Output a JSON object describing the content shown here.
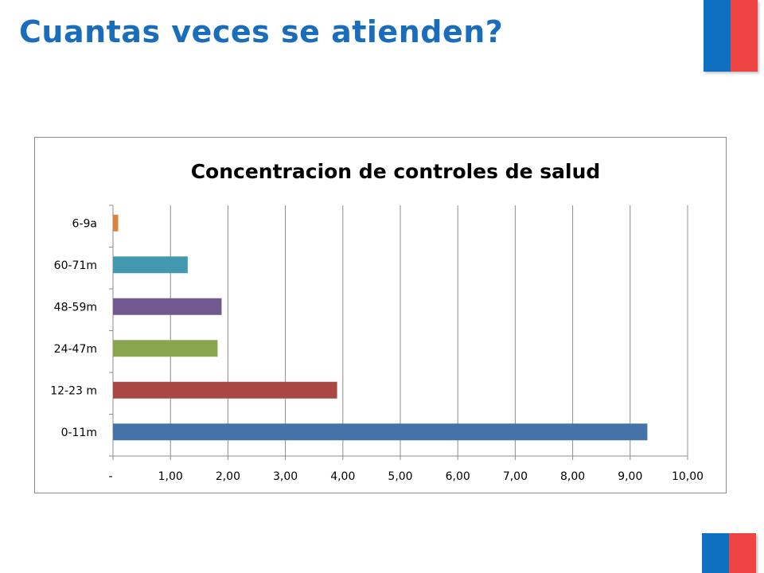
{
  "slide": {
    "title": "Cuantas veces se atienden?"
  },
  "colors": {
    "title": "#1a6dbb",
    "flag_blue": "#0f6fc1",
    "flag_red": "#ef4444",
    "grid": "#8c8c8c"
  },
  "chart_data": {
    "type": "bar",
    "orientation": "horizontal",
    "title": "Concentracion de controles de salud",
    "categories": [
      "0-11m",
      "12-23 m",
      "24-47m",
      "48-59m",
      "60-71m",
      "6-9a"
    ],
    "values": [
      9.3,
      3.9,
      1.82,
      1.89,
      1.3,
      0.09
    ],
    "bar_colors": [
      "#4572a7",
      "#aa4643",
      "#89a54e",
      "#71588f",
      "#4198af",
      "#db843d"
    ],
    "xlim": [
      0,
      10
    ],
    "x_ticks": [
      0,
      1,
      2,
      3,
      4,
      5,
      6,
      7,
      8,
      9,
      10
    ],
    "x_tick_labels": [
      "-",
      "1,00",
      "2,00",
      "3,00",
      "4,00",
      "5,00",
      "6,00",
      "7,00",
      "8,00",
      "9,00",
      "10,00"
    ],
    "grid": true,
    "legend": "none"
  }
}
